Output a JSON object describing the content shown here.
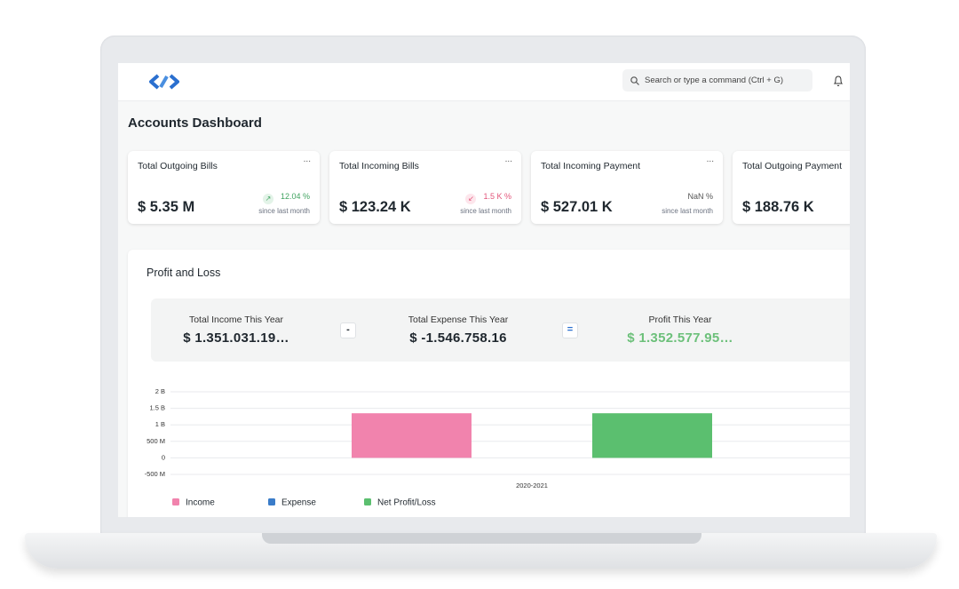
{
  "header": {
    "search_placeholder": "Search or type a command (Ctrl + G)"
  },
  "title": "Accounts Dashboard",
  "cards": [
    {
      "title": "Total Outgoing Bills",
      "menu": "...",
      "value": "$ 5.35 M",
      "change": "12.04 %",
      "since": "since last month"
    },
    {
      "title": "Total Incoming Bills",
      "menu": "...",
      "value": "$ 123.24 K",
      "change": "1.5 K %",
      "since": "since last month"
    },
    {
      "title": "Total Incoming Payment",
      "menu": "...",
      "value": "$ 527.01 K",
      "change": "NaN %",
      "since": "since last month"
    },
    {
      "title": "Total Outgoing Payment",
      "value": "$ 188.76 K"
    }
  ],
  "profit_and_loss": {
    "title": "Profit and Loss",
    "summary": [
      {
        "label": "Total Income This Year",
        "value": "$ 1.351.031.19…"
      },
      {
        "label": "Total Expense This Year",
        "value": "$ -1.546.758.16"
      },
      {
        "label": "Profit This Year",
        "value": "$ 1.352.577.95…"
      }
    ],
    "operators": [
      "-",
      "="
    ]
  },
  "chart_data": {
    "type": "bar",
    "categories": [
      "2020-2021"
    ],
    "series": [
      {
        "name": "Income",
        "color": "#f183ad",
        "values": [
          1350000000
        ]
      },
      {
        "name": "Expense",
        "color": "#3a7cc9",
        "values": [
          null
        ]
      },
      {
        "name": "Net Profit/Loss",
        "color": "#5bbf6f",
        "values": [
          1350000000
        ]
      }
    ],
    "ylim": [
      -500000000,
      2000000000
    ],
    "yticks": [
      {
        "value": -500000000,
        "label": "-500 M"
      },
      0,
      {
        "value": 500000000,
        "label": "500 M"
      },
      {
        "value": 1000000000,
        "label": "1 B"
      },
      {
        "value": 1500000000,
        "label": "1.5 B"
      },
      {
        "value": 2000000000,
        "label": "2 B"
      }
    ],
    "grid": true
  }
}
